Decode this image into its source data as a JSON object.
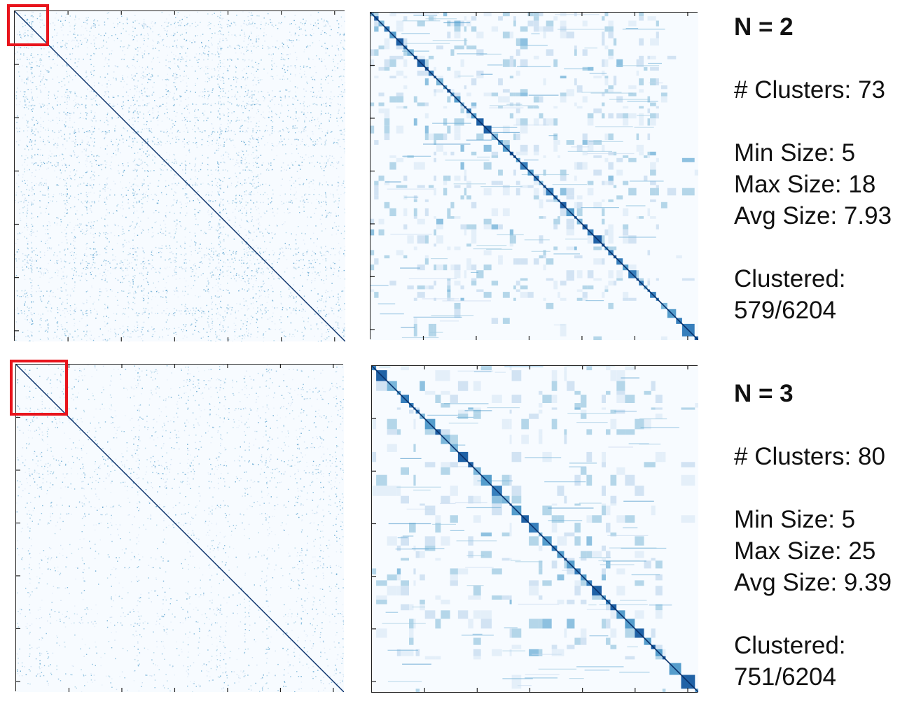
{
  "rows": [
    {
      "heading": "N = 2",
      "clusters_label": "# Clusters: 73",
      "min_label": "Min Size: 5",
      "max_label": "Max Size: 18",
      "avg_label": "Avg Size: 7.93",
      "clustered_label": "Clustered:",
      "clustered_value": "579/6204"
    },
    {
      "heading": "N = 3",
      "clusters_label": "# Clusters: 80",
      "min_label": "Min Size: 5",
      "max_label": "Max Size: 25",
      "avg_label": "Avg Size: 9.39",
      "clustered_label": "Clustered:",
      "clustered_value": "751/6204"
    }
  ],
  "chart_data": [
    {
      "type": "heatmap",
      "panel": "N = 2 full matrix",
      "matrix_size": 6204,
      "colormap": "Blues",
      "values": "sparse similarity matrix with strong diagonal",
      "zoom_region": "top-left",
      "highlight_color": "#e8141c"
    },
    {
      "type": "heatmap",
      "panel": "N = 2 clustered view",
      "n_clusters": 73,
      "n_points": 579,
      "min_size": 5,
      "max_size": 18,
      "avg_size": 7.93,
      "colormap": "Blues"
    },
    {
      "type": "heatmap",
      "panel": "N = 3 full matrix",
      "matrix_size": 6204,
      "colormap": "Blues",
      "values": "sparse similarity matrix with strong diagonal",
      "zoom_region": "top-left",
      "highlight_color": "#e8141c"
    },
    {
      "type": "heatmap",
      "panel": "N = 3 clustered view",
      "n_clusters": 80,
      "n_points": 751,
      "min_size": 5,
      "max_size": 25,
      "avg_size": 9.39,
      "colormap": "Blues"
    }
  ]
}
